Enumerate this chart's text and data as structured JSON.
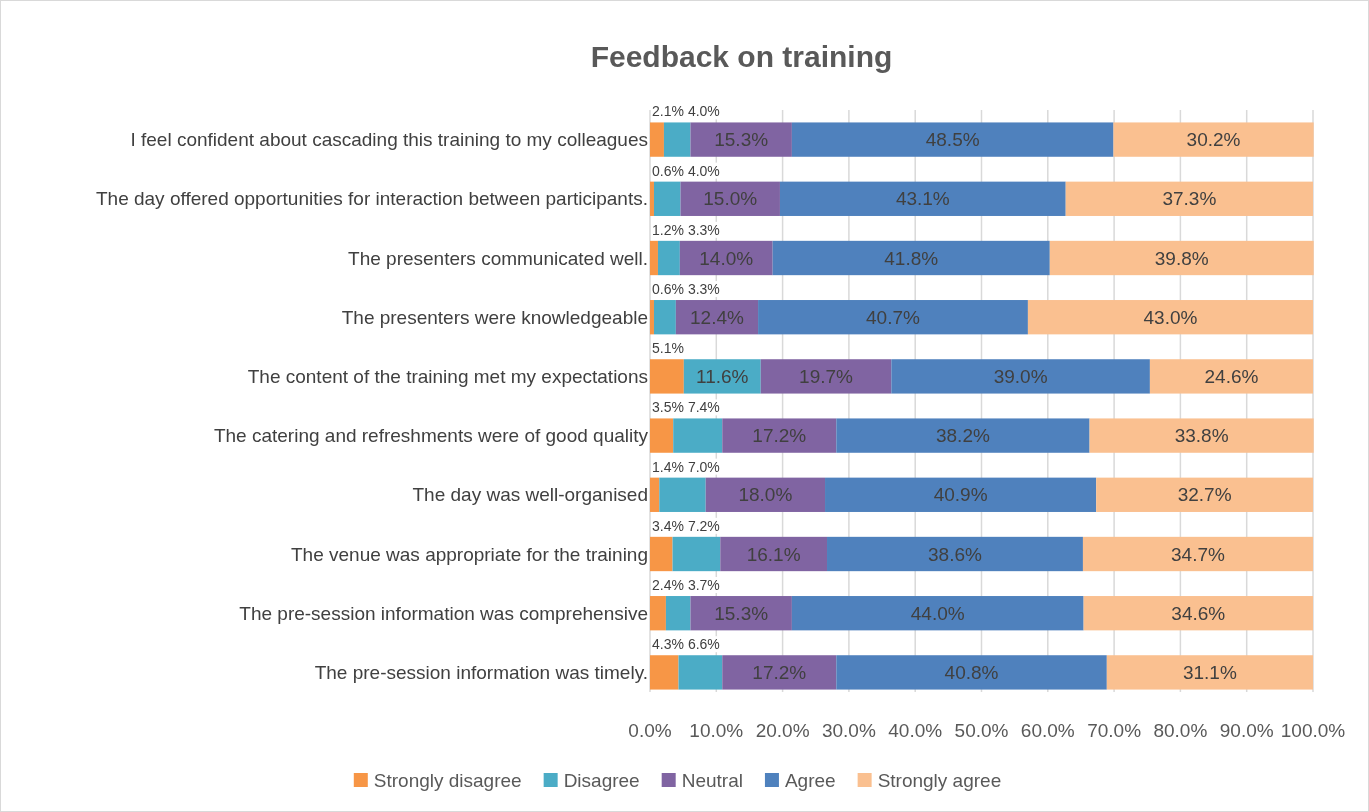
{
  "chart_data": {
    "type": "bar",
    "orientation": "horizontal",
    "stacked": true,
    "title": "Feedback on training",
    "categories": [
      "I feel confident about cascading this training to my colleagues",
      "The day offered opportunities for interaction between participants.",
      "The presenters communicated well.",
      "The presenters were knowledgeable",
      "The content of the training met my expectations",
      "The catering and refreshments were of good quality",
      "The day was well-organised",
      "The venue was appropriate for the training",
      "The pre-session information was comprehensive",
      "The pre-session information was timely."
    ],
    "series": [
      {
        "name": "Strongly disagree",
        "color": "#f79646",
        "values": [
          2.1,
          0.6,
          1.2,
          0.6,
          5.1,
          3.5,
          1.4,
          3.4,
          2.4,
          4.3
        ],
        "value_labels": [
          "2.1%",
          "0.6%",
          "1.2%",
          "0.6%",
          "5.1%",
          "3.5%",
          "1.4%",
          "3.4%",
          "2.4%",
          "4.3%"
        ]
      },
      {
        "name": "Disagree",
        "color": "#4bacc6",
        "values": [
          4.0,
          4.0,
          3.3,
          3.3,
          11.6,
          7.4,
          7.0,
          7.2,
          3.7,
          6.6
        ],
        "value_labels": [
          "4.0%",
          "4.0%",
          "3.3%",
          "3.3%",
          "11.6%",
          "7.4%",
          "7.0%",
          "7.2%",
          "3.7%",
          "6.6%"
        ]
      },
      {
        "name": "Neutral",
        "color": "#8064a2",
        "values": [
          15.3,
          15.0,
          14.0,
          12.4,
          19.7,
          17.2,
          18.0,
          16.1,
          15.3,
          17.2
        ],
        "value_labels": [
          "15.3%",
          "15.0%",
          "14.0%",
          "12.4%",
          "19.7%",
          "17.2%",
          "18.0%",
          "16.1%",
          "15.3%",
          "17.2%"
        ]
      },
      {
        "name": "Agree",
        "color": "#4f81bd",
        "values": [
          48.5,
          43.1,
          41.8,
          40.7,
          39.0,
          38.2,
          40.9,
          38.6,
          44.0,
          40.8
        ],
        "value_labels": [
          "48.5%",
          "43.1%",
          "41.8%",
          "40.7%",
          "39.0%",
          "38.2%",
          "40.9%",
          "38.6%",
          "44.0%",
          "40.8%"
        ]
      },
      {
        "name": "Strongly agree",
        "color": "#fac090",
        "values": [
          30.2,
          37.3,
          39.8,
          43.0,
          24.6,
          33.8,
          32.7,
          34.7,
          34.6,
          31.1
        ],
        "value_labels": [
          "30.2%",
          "37.3%",
          "39.8%",
          "43.0%",
          "24.6%",
          "33.8%",
          "32.7%",
          "34.7%",
          "34.6%",
          "31.1%"
        ]
      }
    ],
    "xlim": [
      0,
      100
    ],
    "xticks": [
      {
        "value": 0,
        "label": "0.0%"
      },
      {
        "value": 10,
        "label": "10.0%"
      },
      {
        "value": 20,
        "label": "20.0%"
      },
      {
        "value": 30,
        "label": "30.0%"
      },
      {
        "value": 40,
        "label": "40.0%"
      },
      {
        "value": 50,
        "label": "50.0%"
      },
      {
        "value": 60,
        "label": "60.0%"
      },
      {
        "value": 70,
        "label": "70.0%"
      },
      {
        "value": 80,
        "label": "80.0%"
      },
      {
        "value": 90,
        "label": "90.0%"
      },
      {
        "value": 100,
        "label": "100.0%"
      }
    ],
    "grid": "x",
    "legend": "bottom"
  }
}
